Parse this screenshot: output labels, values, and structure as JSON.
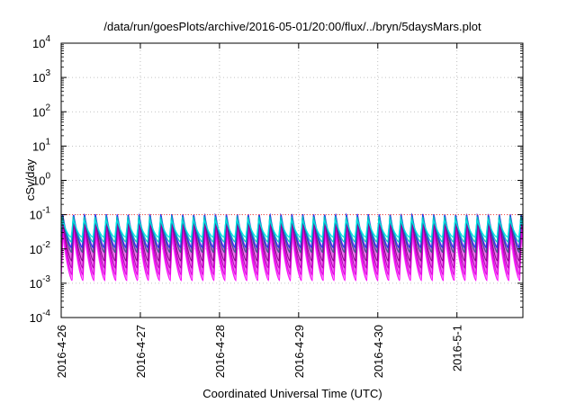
{
  "chart_data": {
    "type": "area",
    "title": "/data/run/goesPlots/archive/2016-05-01/20:00/flux/../bryn/5daysMars.plot",
    "xlabel": "Coordinated Universal Time (UTC)",
    "ylabel": "cSv/day",
    "y_scale": "log",
    "ylim": [
      0.0001,
      10000
    ],
    "y_ticks": [
      {
        "base": "10",
        "exp": "-4",
        "value": 0.0001
      },
      {
        "base": "10",
        "exp": "-3",
        "value": 0.001
      },
      {
        "base": "10",
        "exp": "-2",
        "value": 0.01
      },
      {
        "base": "10",
        "exp": "-1",
        "value": 0.1
      },
      {
        "base": "10",
        "exp": "0",
        "value": 1
      },
      {
        "base": "10",
        "exp": "1",
        "value": 10
      },
      {
        "base": "10",
        "exp": "2",
        "value": 100
      },
      {
        "base": "10",
        "exp": "3",
        "value": 1000
      },
      {
        "base": "10",
        "exp": "4",
        "value": 10000
      }
    ],
    "x_ticks": [
      "2016-4-26",
      "2016-4-27",
      "2016-4-28",
      "2016-4-29",
      "2016-4-30",
      "2016-5-1"
    ],
    "xlim": [
      "2016-4-26 00:00",
      "2016-5-1 20:00"
    ],
    "grid": true,
    "oscillation": {
      "cycles_per_day": 7.25,
      "upper_envelope": {
        "peak": 0.11,
        "trough": 0.012
      },
      "lower_envelope": {
        "peak": 0.02,
        "trough": 0.0013
      }
    },
    "series": [
      {
        "color": "#ff00ff",
        "peak": 0.03,
        "trough": 0.0012
      },
      {
        "color": "#dd00dd",
        "peak": 0.045,
        "trough": 0.0018
      },
      {
        "color": "#b000b0",
        "peak": 0.06,
        "trough": 0.0028
      },
      {
        "color": "#800080",
        "peak": 0.075,
        "trough": 0.0045
      },
      {
        "color": "#3c5a8a",
        "peak": 0.1,
        "trough": 0.008
      },
      {
        "color": "#2233ee",
        "peak": 0.105,
        "trough": 0.011
      },
      {
        "color": "#00bfbf",
        "peak": 0.09,
        "trough": 0.016
      },
      {
        "color": "#00e0e0",
        "peak": 0.07,
        "trough": 0.022
      }
    ],
    "reference_line": {
      "value": 0.1,
      "color": "#ff4444",
      "style": "dotted"
    }
  }
}
